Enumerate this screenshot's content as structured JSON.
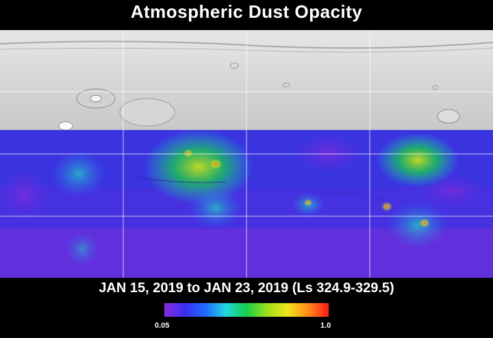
{
  "title": "Atmospheric Dust Opacity",
  "date_range": "JAN 15, 2019 to JAN 23, 2019 (Ls 324.9-329.5)",
  "colorbar": {
    "min_label": "0.05",
    "max_label": "1.0",
    "colors": [
      "#8a2be2",
      "#3a2ff0",
      "#1f6bff",
      "#1fd8e0",
      "#15d04a",
      "#9de01a",
      "#f2e51a",
      "#ff8c1a",
      "#ff1a1a"
    ]
  }
}
